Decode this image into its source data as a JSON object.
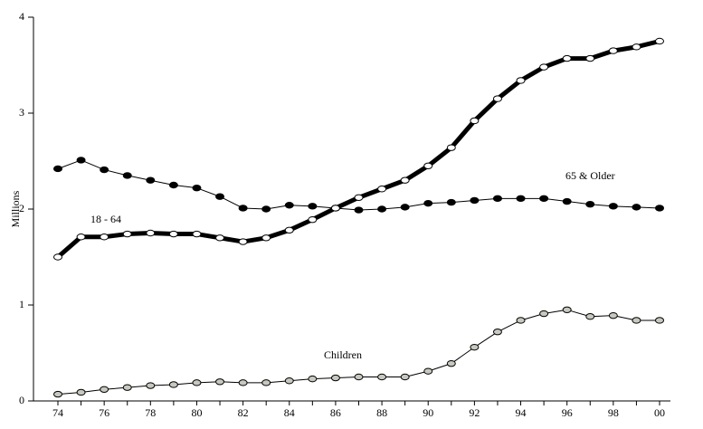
{
  "chart_data": {
    "type": "line",
    "y_label": "Millions",
    "categories": [
      "74",
      null,
      "76",
      null,
      "78",
      null,
      "80",
      null,
      "82",
      null,
      "84",
      null,
      "86",
      null,
      "88",
      null,
      "90",
      null,
      "92",
      null,
      "94",
      null,
      "96",
      null,
      "98",
      null,
      "00"
    ],
    "ylim": [
      0,
      4
    ],
    "yticks": [
      0,
      1,
      2,
      3,
      4
    ],
    "grid": false,
    "series": [
      {
        "name": "65 & Older",
        "color": "#000000",
        "marker_color": "#000000",
        "values": [
          2.42,
          2.51,
          2.41,
          2.35,
          2.3,
          2.25,
          2.22,
          2.13,
          2.01,
          2.0,
          2.04,
          2.03,
          2.01,
          1.99,
          2.0,
          2.02,
          2.06,
          2.07,
          2.09,
          2.11,
          2.11,
          2.11,
          2.08,
          2.05,
          2.03,
          2.02,
          2.01
        ]
      },
      {
        "name": "18 - 64",
        "color": "#000000",
        "marker_color": "#ffffff",
        "values": [
          1.5,
          1.71,
          1.71,
          1.74,
          1.75,
          1.74,
          1.74,
          1.7,
          1.66,
          1.7,
          1.78,
          1.89,
          2.01,
          2.12,
          2.21,
          2.3,
          2.45,
          2.64,
          2.92,
          3.15,
          3.34,
          3.48,
          3.57,
          3.57,
          3.65,
          3.69,
          3.75
        ]
      },
      {
        "name": "Children",
        "color": "#000000",
        "marker_color": "#c8c8c0",
        "values": [
          0.07,
          0.09,
          0.12,
          0.14,
          0.16,
          0.17,
          0.19,
          0.2,
          0.19,
          0.19,
          0.21,
          0.23,
          0.24,
          0.25,
          0.25,
          0.25,
          0.31,
          0.39,
          0.56,
          0.72,
          0.84,
          0.91,
          0.95,
          0.88,
          0.89,
          0.84,
          0.84
        ]
      }
    ]
  }
}
